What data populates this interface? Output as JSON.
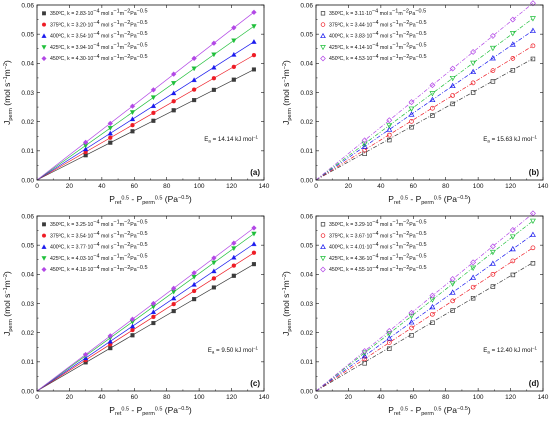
{
  "chart_data": [
    {
      "type": "scatter",
      "panel_label": "(a)",
      "ea_text": "E_a = 14.14 kJ mol^-1",
      "ea": {
        "sym": "E",
        "sub": "a",
        "mid": " = 14.14 kJ mol",
        "sup": "−1"
      },
      "marker_fill": "filled",
      "fit_style": "solid",
      "xlim": [
        0,
        140
      ],
      "ylim": [
        0,
        0.06
      ],
      "xticks": [
        "0",
        "20",
        "40",
        "60",
        "80",
        "100",
        "120",
        "140"
      ],
      "yticks": [
        "0.00",
        "0.01",
        "0.02",
        "0.03",
        "0.04",
        "0.05",
        "0.06"
      ],
      "x": [
        30.0,
        45.2,
        58.9,
        71.8,
        84.3,
        96.9,
        109.1,
        121.4,
        133.8
      ],
      "series": [
        {
          "name": "350ºC, k = 2.83·10⁻⁴ mol s⁻¹m⁻²Pa⁻⁰·⁵",
          "legend": {
            "pre": "350ºC, k = 2.83·10",
            "e1": "−4",
            "mid": "mol s",
            "e2": "−1",
            "m": "m",
            "e3": "−2",
            "pa": "Pa",
            "e4": "−0.5"
          },
          "color": "#3b3b3b",
          "marker": "square",
          "k": 0.000283,
          "y": [
            0.0085,
            0.0128,
            0.0167,
            0.0203,
            0.0239,
            0.0274,
            0.0309,
            0.0344,
            0.0379
          ]
        },
        {
          "name": "375ºC, k = 3.20·10⁻⁴ mol s⁻¹m⁻²Pa⁻⁰·⁵",
          "legend": {
            "pre": "375ºC, k = 3.20·10",
            "e1": "−4",
            "mid": "mol s",
            "e2": "−1",
            "m": "m",
            "e3": "−2",
            "pa": "Pa",
            "e4": "−0.5"
          },
          "color": "#ee1c25",
          "marker": "circle",
          "k": 0.00032,
          "y": [
            0.0096,
            0.0145,
            0.0188,
            0.023,
            0.027,
            0.031,
            0.0349,
            0.0388,
            0.0428
          ]
        },
        {
          "name": "400ºC, k = 3.54·10⁻⁴ mol s⁻¹m⁻²Pa⁻⁰·⁵",
          "legend": {
            "pre": "400ºC, k = 3.54·10",
            "e1": "−4",
            "mid": "mol s",
            "e2": "−1",
            "m": "m",
            "e3": "−2",
            "pa": "Pa",
            "e4": "−0.5"
          },
          "color": "#1a1aee",
          "marker": "triangle-up",
          "k": 0.000354,
          "y": [
            0.0106,
            0.016,
            0.0209,
            0.0254,
            0.0298,
            0.0343,
            0.0386,
            0.043,
            0.0474
          ]
        },
        {
          "name": "425ºC, k = 3.94·10⁻⁴ mol s⁻¹m⁻²Pa⁻⁰·⁵",
          "legend": {
            "pre": "425ºC, k = 3.94·10",
            "e1": "−4",
            "mid": "mol s",
            "e2": "−1",
            "m": "m",
            "e3": "−2",
            "pa": "Pa",
            "e4": "−0.5"
          },
          "color": "#1fbf3a",
          "marker": "triangle-down",
          "k": 0.000394,
          "y": [
            0.0118,
            0.0178,
            0.0232,
            0.0283,
            0.0332,
            0.0382,
            0.043,
            0.0478,
            0.0527
          ]
        },
        {
          "name": "450ºC, k = 4.30·10⁻⁴ mol s⁻¹m⁻²Pa⁻⁰·⁵",
          "legend": {
            "pre": "450ºC, k = 4.30·10",
            "e1": "−4",
            "mid": "mol s",
            "e2": "−1",
            "m": "m",
            "e3": "−2",
            "pa": "Pa",
            "e4": "−0.5"
          },
          "color": "#b247e6",
          "marker": "diamond",
          "k": 0.00043,
          "y": [
            0.0129,
            0.0194,
            0.0253,
            0.0309,
            0.0363,
            0.0417,
            0.0469,
            0.0522,
            0.0575
          ]
        }
      ],
      "ylabel": "J_perm (mol s^-1 m^-2)",
      "xlabel": "P_ret^0.5 - P_perm^0.5 (Pa^-0.5)"
    },
    {
      "type": "scatter",
      "panel_label": "(b)",
      "ea_text": "E_a = 15.63 kJ mol^-1",
      "ea": {
        "sym": "E",
        "sub": "a",
        "mid": " = 15.63 kJ mol",
        "sup": "−1"
      },
      "marker_fill": "open",
      "fit_style": "dashdot",
      "xlim": [
        0,
        140
      ],
      "ylim": [
        0,
        0.06
      ],
      "xticks": [
        "0",
        "20",
        "40",
        "60",
        "80",
        "100",
        "120",
        "140"
      ],
      "yticks": [
        "0.00",
        "0.01",
        "0.02",
        "0.03",
        "0.04",
        "0.05",
        "0.06"
      ],
      "x": [
        30.0,
        45.2,
        58.9,
        71.8,
        84.3,
        96.9,
        109.1,
        121.4,
        133.8
      ],
      "series": [
        {
          "name": "350ºC, k = 3.11·10⁻⁴ mol s⁻¹m⁻²Pa⁻⁰·⁵",
          "legend": {
            "pre": "350ºC, k = 3.11·10",
            "e1": "−4",
            "mid": "mol s",
            "e2": "−1",
            "m": "m",
            "e3": "−2",
            "pa": "Pa",
            "e4": "−0.5"
          },
          "color": "#3b3b3b",
          "marker": "square",
          "k": 0.000311,
          "y": [
            0.009,
            0.0137,
            0.0181,
            0.0221,
            0.0261,
            0.03,
            0.0338,
            0.0376,
            0.0415
          ]
        },
        {
          "name": "375ºC, k = 3.44·10⁻⁴ mol s⁻¹m⁻²Pa⁻⁰·⁵",
          "legend": {
            "pre": "375ºC, k = 3.44·10",
            "e1": "−4",
            "mid": "mol s",
            "e2": "−1",
            "m": "m",
            "e3": "−2",
            "pa": "Pa",
            "e4": "−0.5"
          },
          "color": "#ee1c25",
          "marker": "circle",
          "k": 0.000344,
          "y": [
            0.0102,
            0.0154,
            0.0201,
            0.0246,
            0.029,
            0.0333,
            0.0375,
            0.0417,
            0.046
          ]
        },
        {
          "name": "400ºC, k = 3.83·10⁻⁴ mol s⁻¹m⁻²Pa⁻⁰·⁵",
          "legend": {
            "pre": "400ºC, k = 3.83·10",
            "e1": "−4",
            "mid": "mol s",
            "e2": "−1",
            "m": "m",
            "e3": "−2",
            "pa": "Pa",
            "e4": "−0.5"
          },
          "color": "#1a1aee",
          "marker": "triangle-up",
          "k": 0.000383,
          "y": [
            0.0115,
            0.0173,
            0.0225,
            0.0275,
            0.0323,
            0.0371,
            0.0418,
            0.0465,
            0.0512
          ]
        },
        {
          "name": "425ºC, k = 4.14·10⁻⁴ mol s⁻¹m⁻²Pa⁻⁰·⁵",
          "legend": {
            "pre": "425ºC, k = 4.14·10",
            "e1": "−4",
            "mid": "mol s",
            "e2": "−1",
            "m": "m",
            "e3": "−2",
            "pa": "Pa",
            "e4": "−0.5"
          },
          "color": "#1fbf3a",
          "marker": "triangle-down",
          "k": 0.000414,
          "y": [
            0.0124,
            0.0187,
            0.0244,
            0.0297,
            0.0349,
            0.0401,
            0.0452,
            0.0503,
            0.0554
          ]
        },
        {
          "name": "450ºC, k = 4.53·10⁻⁴ mol s⁻¹m⁻²Pa⁻⁰·⁵",
          "legend": {
            "pre": "450ºC, k = 4.53·10",
            "e1": "−4",
            "mid": "mol s",
            "e2": "−1",
            "m": "m",
            "e3": "−2",
            "pa": "Pa",
            "e4": "−0.5"
          },
          "color": "#b247e6",
          "marker": "diamond",
          "k": 0.000453,
          "y": [
            0.0136,
            0.0205,
            0.0267,
            0.0325,
            0.0382,
            0.0439,
            0.0494,
            0.055,
            0.0606
          ]
        }
      ],
      "ylabel": "J_perm (mol s^-1 m^-2)",
      "xlabel": "P_ret^0.5 - P_perm^0.5 (Pa^-0.5)"
    },
    {
      "type": "scatter",
      "panel_label": "(c)",
      "ea_text": "E_a = 9.50 kJ mol^-1",
      "ea": {
        "sym": "E",
        "sub": "a",
        "mid": " = 9.50 kJ mol",
        "sup": "−1"
      },
      "marker_fill": "filled",
      "fit_style": "solid",
      "xlim": [
        0,
        140
      ],
      "ylim": [
        0,
        0.06
      ],
      "xticks": [
        "0",
        "20",
        "40",
        "60",
        "80",
        "100",
        "120",
        "140"
      ],
      "yticks": [
        "0.00",
        "0.01",
        "0.02",
        "0.03",
        "0.04",
        "0.05",
        "0.06"
      ],
      "x": [
        30.0,
        45.2,
        58.9,
        71.8,
        84.3,
        96.9,
        109.1,
        121.4,
        133.8
      ],
      "series": [
        {
          "name": "350ºC, k = 3.25·10⁻⁴ mol s⁻¹m⁻²Pa⁻⁰·⁵",
          "legend": {
            "pre": "350ºC, k = 3.25·10",
            "e1": "−4",
            "mid": "mol s",
            "e2": "−1",
            "m": "m",
            "e3": "−2",
            "pa": "Pa",
            "e4": "−0.5"
          },
          "color": "#3b3b3b",
          "marker": "square",
          "k": 0.000325,
          "y": [
            0.0098,
            0.0147,
            0.0191,
            0.0233,
            0.0274,
            0.0315,
            0.0355,
            0.0395,
            0.0435
          ]
        },
        {
          "name": "375ºC, k = 3.54·10⁻⁴ mol s⁻¹m⁻²Pa⁻⁰·⁵",
          "legend": {
            "pre": "375ºC, k = 3.54·10",
            "e1": "−4",
            "mid": "mol s",
            "e2": "−1",
            "m": "m",
            "e3": "−2",
            "pa": "Pa",
            "e4": "−0.5"
          },
          "color": "#ee1c25",
          "marker": "circle",
          "k": 0.000354,
          "y": [
            0.0106,
            0.016,
            0.0209,
            0.0254,
            0.0298,
            0.0343,
            0.0386,
            0.043,
            0.0474
          ]
        },
        {
          "name": "400ºC, k = 3.77·10⁻⁴ mol s⁻¹m⁻²Pa⁻⁰·⁵",
          "legend": {
            "pre": "400ºC, k = 3.77·10",
            "e1": "−4",
            "mid": "mol s",
            "e2": "−1",
            "m": "m",
            "e3": "−2",
            "pa": "Pa",
            "e4": "−0.5"
          },
          "color": "#1a1aee",
          "marker": "triangle-up",
          "k": 0.000377,
          "y": [
            0.0113,
            0.017,
            0.0222,
            0.0271,
            0.0318,
            0.0365,
            0.0411,
            0.0458,
            0.0504
          ]
        },
        {
          "name": "425ºC, k = 4.03·10⁻⁴ mol s⁻¹m⁻²Pa⁻⁰·⁵",
          "legend": {
            "pre": "425ºC, k = 4.03·10",
            "e1": "−4",
            "mid": "mol s",
            "e2": "−1",
            "m": "m",
            "e3": "−2",
            "pa": "Pa",
            "e4": "−0.5"
          },
          "color": "#1fbf3a",
          "marker": "triangle-down",
          "k": 0.000403,
          "y": [
            0.0121,
            0.0182,
            0.0237,
            0.0289,
            0.034,
            0.0391,
            0.044,
            0.0489,
            0.0539
          ]
        },
        {
          "name": "450ºC, k = 4.18·10⁻⁴ mol s⁻¹m⁻²Pa⁻⁰·⁵",
          "legend": {
            "pre": "450ºC, k = 4.18·10",
            "e1": "−4",
            "mid": "mol s",
            "e2": "−1",
            "m": "m",
            "e3": "−2",
            "pa": "Pa",
            "e4": "−0.5"
          },
          "color": "#b247e6",
          "marker": "diamond",
          "k": 0.000418,
          "y": [
            0.0125,
            0.0189,
            0.0246,
            0.03,
            0.0352,
            0.0405,
            0.0456,
            0.0507,
            0.0559
          ]
        }
      ],
      "ylabel": "J_perm (mol s^-1 m^-2)",
      "xlabel": "P_ret^0.5 - P_perm^0.5 (Pa^-0.5)"
    },
    {
      "type": "scatter",
      "panel_label": "(d)",
      "ea_text": "E_a = 12.40 kJ mol^-1",
      "ea": {
        "sym": "E",
        "sub": "a",
        "mid": " = 12.40 kJ mol",
        "sup": "−1"
      },
      "marker_fill": "open",
      "fit_style": "dashdot",
      "xlim": [
        0,
        140
      ],
      "ylim": [
        0,
        0.06
      ],
      "xticks": [
        "0",
        "20",
        "40",
        "60",
        "80",
        "100",
        "120",
        "140"
      ],
      "yticks": [
        "0.00",
        "0.01",
        "0.02",
        "0.03",
        "0.04",
        "0.05",
        "0.06"
      ],
      "x": [
        30.0,
        45.2,
        58.9,
        71.8,
        84.3,
        96.9,
        109.1,
        121.4,
        133.8
      ],
      "series": [
        {
          "name": "350ºC, k = 3.29·10⁻⁴ mol s⁻¹m⁻²Pa⁻⁰·⁵",
          "legend": {
            "pre": "350ºC, k = 3.29·10",
            "e1": "−4",
            "mid": "mol s",
            "e2": "−1",
            "m": "m",
            "e3": "−2",
            "pa": "Pa",
            "e4": "−0.5"
          },
          "color": "#3b3b3b",
          "marker": "square",
          "k": 0.000329,
          "y": [
            0.0095,
            0.0145,
            0.0191,
            0.0234,
            0.0276,
            0.0318,
            0.0358,
            0.0398,
            0.0438
          ]
        },
        {
          "name": "375ºC, k = 3.67·10⁻⁴ mol s⁻¹m⁻²Pa⁻⁰·⁵",
          "legend": {
            "pre": "375ºC, k = 3.67·10",
            "e1": "−4",
            "mid": "mol s",
            "e2": "−1",
            "m": "m",
            "e3": "−2",
            "pa": "Pa",
            "e4": "−0.5"
          },
          "color": "#ee1c25",
          "marker": "circle",
          "k": 0.000367,
          "y": [
            0.011,
            0.0166,
            0.0216,
            0.0263,
            0.0309,
            0.0356,
            0.04,
            0.0446,
            0.0491
          ]
        },
        {
          "name": "400ºC, k = 4.01·10⁻⁴ mol s⁻¹m⁻²Pa⁻⁰·⁵",
          "legend": {
            "pre": "400ºC, k = 4.01·10",
            "e1": "−4",
            "mid": "mol s",
            "e2": "−1",
            "m": "m",
            "e3": "−2",
            "pa": "Pa",
            "e4": "−0.5"
          },
          "color": "#1a1aee",
          "marker": "triangle-up",
          "k": 0.000401,
          "y": [
            0.012,
            0.0181,
            0.0236,
            0.0288,
            0.0338,
            0.0389,
            0.0437,
            0.0487,
            0.0536
          ]
        },
        {
          "name": "425ºC, k = 4.36·10⁻⁴ mol s⁻¹m⁻²Pa⁻⁰·⁵",
          "legend": {
            "pre": "425ºC, k = 4.36·10",
            "e1": "−4",
            "mid": "mol s",
            "e2": "−1",
            "m": "m",
            "e3": "−2",
            "pa": "Pa",
            "e4": "−0.5"
          },
          "color": "#1fbf3a",
          "marker": "triangle-down",
          "k": 0.000436,
          "y": [
            0.0131,
            0.0197,
            0.0257,
            0.0313,
            0.0368,
            0.0422,
            0.0476,
            0.0529,
            0.0583
          ]
        },
        {
          "name": "450ºC, k = 4.55·10⁻⁴ mol s⁻¹m⁻²Pa⁻⁰·⁵",
          "legend": {
            "pre": "450ºC, k = 4.55·10",
            "e1": "−4",
            "mid": "mol s",
            "e2": "−1",
            "m": "m",
            "e3": "−2",
            "pa": "Pa",
            "e4": "−0.5"
          },
          "color": "#b247e6",
          "marker": "diamond",
          "k": 0.000455,
          "y": [
            0.0137,
            0.0206,
            0.0268,
            0.0327,
            0.0384,
            0.0441,
            0.0496,
            0.0552,
            0.0609
          ]
        }
      ],
      "ylabel": "J_perm (mol s^-1 m^-2)",
      "xlabel": "P_ret^0.5 - P_perm^0.5 (Pa^-0.5)"
    }
  ]
}
